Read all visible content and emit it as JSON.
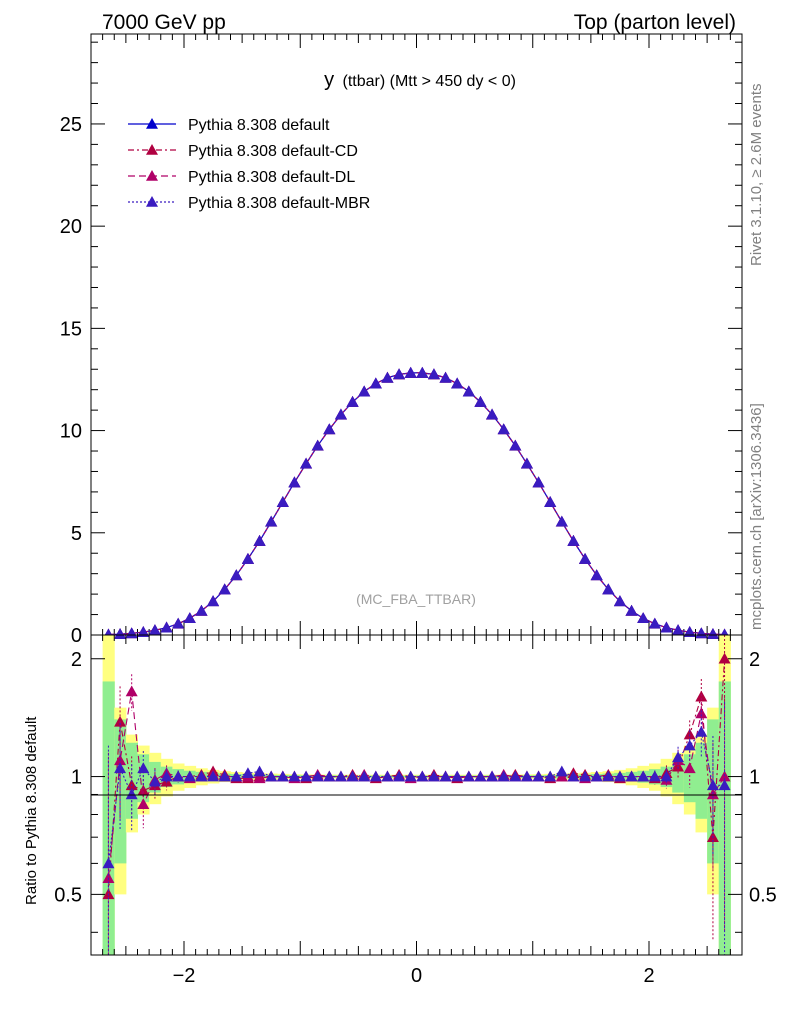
{
  "header": {
    "left": "7000 GeV pp",
    "right": "Top (parton level)"
  },
  "side_labels": {
    "rivet": "Rivet 3.1.10, ≥ 2.6M events",
    "mcplots": "mcplots.cern.ch [arXiv:1306.3436]"
  },
  "analysis_tag": "(MC_FBA_TTBAR)",
  "colors": {
    "default": "#0000cc",
    "cd": "#b00040",
    "dl": "#b00068",
    "mbr": "#3a1cc0",
    "band_green": "#90ee90",
    "band_yellow": "#ffff80"
  },
  "chart_data": [
    {
      "type": "line",
      "title_main": "y",
      "title_rest": "(ttbar) (Mtt > 450 dy < 0)",
      "xlim": [
        -2.8,
        2.8
      ],
      "ylim": [
        0,
        29.4
      ],
      "yticks": [
        0,
        5,
        10,
        15,
        20,
        25
      ],
      "legend_position": "top-left",
      "series": [
        {
          "name": "Pythia 8.308 default"
        },
        {
          "name": "Pythia 8.308 default-CD"
        },
        {
          "name": "Pythia 8.308 default-DL"
        },
        {
          "name": "Pythia 8.308 default-MBR"
        }
      ],
      "x": [
        -2.65,
        -2.55,
        -2.45,
        -2.35,
        -2.25,
        -2.15,
        -2.05,
        -1.95,
        -1.85,
        -1.75,
        -1.65,
        -1.55,
        -1.45,
        -1.35,
        -1.25,
        -1.15,
        -1.05,
        -0.95,
        -0.85,
        -0.75,
        -0.65,
        -0.55,
        -0.45,
        -0.35,
        -0.25,
        -0.15,
        -0.05,
        0.05,
        0.15,
        0.25,
        0.35,
        0.45,
        0.55,
        0.65,
        0.75,
        0.85,
        0.95,
        1.05,
        1.15,
        1.25,
        1.35,
        1.45,
        1.55,
        1.65,
        1.75,
        1.85,
        1.95,
        2.05,
        2.15,
        2.25,
        2.35,
        2.45,
        2.55,
        2.65
      ],
      "y": [
        0.02,
        0.04,
        0.08,
        0.14,
        0.23,
        0.36,
        0.55,
        0.82,
        1.18,
        1.65,
        2.23,
        2.92,
        3.72,
        4.6,
        5.54,
        6.5,
        7.46,
        8.38,
        9.26,
        10.06,
        10.78,
        11.4,
        11.91,
        12.3,
        12.58,
        12.75,
        12.82,
        12.82,
        12.75,
        12.58,
        12.3,
        11.91,
        11.4,
        10.78,
        10.06,
        9.26,
        8.38,
        7.46,
        6.5,
        5.54,
        4.6,
        3.72,
        2.92,
        2.23,
        1.65,
        1.18,
        0.82,
        0.55,
        0.36,
        0.23,
        0.14,
        0.08,
        0.04,
        0.02
      ]
    },
    {
      "type": "line",
      "ylabel": "Ratio to Pythia 8.308 default",
      "xlim": [
        -2.8,
        2.8
      ],
      "ylim": [
        0.35,
        2.3
      ],
      "xticks": [
        -2,
        0,
        2
      ],
      "yticks": [
        0.5,
        1,
        2
      ],
      "x": [
        -2.65,
        -2.55,
        -2.45,
        -2.35,
        -2.25,
        -2.15,
        -2.05,
        -1.95,
        -1.85,
        -1.75,
        -1.65,
        -1.55,
        -1.45,
        -1.35,
        -1.25,
        -1.15,
        -1.05,
        -0.95,
        -0.85,
        -0.75,
        -0.65,
        -0.55,
        -0.45,
        -0.35,
        -0.25,
        -0.15,
        -0.05,
        0.05,
        0.15,
        0.25,
        0.35,
        0.45,
        0.55,
        0.65,
        0.75,
        0.85,
        0.95,
        1.05,
        1.15,
        1.25,
        1.35,
        1.45,
        1.55,
        1.65,
        1.75,
        1.85,
        1.95,
        2.05,
        2.15,
        2.25,
        2.35,
        2.45,
        2.55,
        2.65
      ],
      "band_green": [
        0.75,
        0.4,
        0.22,
        0.14,
        0.09,
        0.06,
        0.045,
        0.035,
        0.028,
        0.022,
        0.018,
        0.015,
        0.013,
        0.011,
        0.01,
        0.009,
        0.008,
        0.008,
        0.007,
        0.007,
        0.007,
        0.006,
        0.006,
        0.006,
        0.006,
        0.006,
        0.006,
        0.006,
        0.006,
        0.006,
        0.006,
        0.006,
        0.006,
        0.007,
        0.007,
        0.007,
        0.008,
        0.008,
        0.009,
        0.01,
        0.011,
        0.013,
        0.015,
        0.018,
        0.022,
        0.028,
        0.035,
        0.045,
        0.06,
        0.09,
        0.14,
        0.22,
        0.4,
        0.75
      ],
      "band_yellow": [
        1.3,
        0.5,
        0.28,
        0.2,
        0.15,
        0.11,
        0.08,
        0.065,
        0.05,
        0.04,
        0.032,
        0.027,
        0.023,
        0.02,
        0.018,
        0.016,
        0.014,
        0.013,
        0.012,
        0.012,
        0.011,
        0.011,
        0.011,
        0.011,
        0.011,
        0.011,
        0.011,
        0.011,
        0.011,
        0.011,
        0.011,
        0.011,
        0.011,
        0.011,
        0.012,
        0.012,
        0.013,
        0.014,
        0.016,
        0.018,
        0.02,
        0.023,
        0.027,
        0.032,
        0.04,
        0.05,
        0.065,
        0.08,
        0.11,
        0.15,
        0.2,
        0.28,
        0.5,
        1.3
      ],
      "series": [
        {
          "name": "Pythia 8.308 default-CD",
          "values": [
            0.5,
            1.38,
            0.95,
            0.92,
            0.95,
            0.97,
            1.0,
            1.0,
            1.01,
            1.03,
            1.01,
            0.99,
            0.99,
            1.0,
            1.0,
            1.0,
            1.0,
            0.99,
            1.0,
            1.0,
            1.0,
            1.01,
            1.0,
            0.99,
            1.0,
            1.01,
            1.0,
            1.0,
            1.01,
            1.0,
            0.99,
            1.0,
            1.0,
            1.0,
            1.0,
            1.01,
            1.0,
            1.0,
            0.99,
            1.0,
            1.02,
            1.01,
            1.0,
            1.01,
            0.99,
            1.0,
            1.0,
            0.99,
            1.02,
            1.06,
            1.28,
            1.6,
            0.7,
            2.0
          ]
        },
        {
          "name": "Pythia 8.308 default-DL",
          "values": [
            0.55,
            1.1,
            1.65,
            0.85,
            0.98,
            1.02,
            1.0,
            0.99,
            1.0,
            1.01,
            1.0,
            1.0,
            1.0,
            0.99,
            1.0,
            1.0,
            0.99,
            1.0,
            1.01,
            1.0,
            1.0,
            1.0,
            1.01,
            1.0,
            1.0,
            1.0,
            0.99,
            1.0,
            1.0,
            1.0,
            1.0,
            1.0,
            1.0,
            1.0,
            1.01,
            1.0,
            1.0,
            1.0,
            1.0,
            1.0,
            1.0,
            0.99,
            1.0,
            1.0,
            1.0,
            1.0,
            1.0,
            1.0,
            0.98,
            1.1,
            1.05,
            1.45,
            0.9,
            1.0
          ]
        },
        {
          "name": "Pythia 8.308 default-MBR",
          "values": [
            0.6,
            1.05,
            0.9,
            1.05,
            0.97,
            1.0,
            1.0,
            1.0,
            1.0,
            1.0,
            1.0,
            1.0,
            1.02,
            1.03,
            1.0,
            1.0,
            1.0,
            1.0,
            1.0,
            1.0,
            1.0,
            1.0,
            1.0,
            1.0,
            1.0,
            1.0,
            1.0,
            1.0,
            1.0,
            1.0,
            1.0,
            1.0,
            1.0,
            1.0,
            1.0,
            1.0,
            1.0,
            1.0,
            1.0,
            1.03,
            1.0,
            1.0,
            1.0,
            1.0,
            1.0,
            1.0,
            1.0,
            1.0,
            1.0,
            1.12,
            1.2,
            1.3,
            0.95,
            0.95
          ]
        }
      ]
    }
  ]
}
